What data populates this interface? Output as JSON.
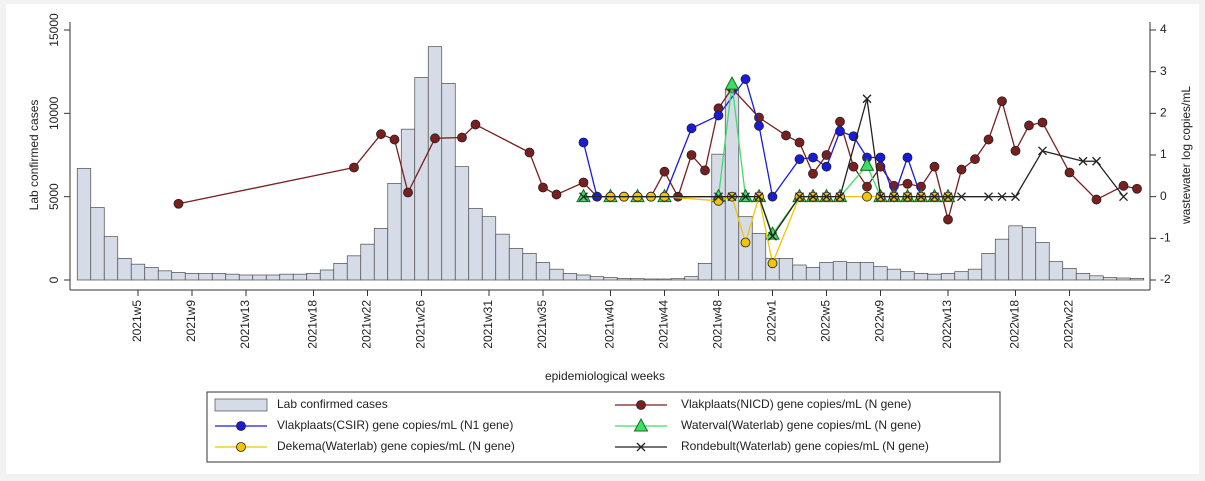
{
  "chart_data": {
    "type": "combo",
    "xlabel": "epidemiological weeks",
    "ylabel": "Lab confirmed cases",
    "y2label": "wastewater log copies/mL",
    "categories": [
      null,
      null,
      null,
      null,
      "2021w5",
      null,
      null,
      null,
      "2021w9",
      null,
      null,
      null,
      "2021w13",
      null,
      null,
      null,
      null,
      "2021w18",
      null,
      null,
      null,
      "2021w22",
      null,
      null,
      null,
      "2021w26",
      null,
      null,
      null,
      null,
      "2021w31",
      null,
      null,
      null,
      "2021w35",
      null,
      null,
      null,
      null,
      "2021w40",
      null,
      null,
      null,
      "2021w44",
      null,
      null,
      null,
      "2021w48",
      null,
      null,
      null,
      "2022w1",
      null,
      null,
      null,
      "2022w5",
      null,
      null,
      null,
      "2022w9",
      null,
      null,
      null,
      null,
      "2022w13",
      null,
      null,
      null,
      null,
      "2022w18",
      null,
      null,
      null,
      "2022w22",
      null,
      null,
      null,
      null,
      null
    ],
    "ylim": [
      0,
      15000
    ],
    "yticks": [
      0,
      5000,
      10000,
      15000
    ],
    "y2lim": [
      -2,
      4
    ],
    "y2ticks": [
      -2,
      -1,
      0,
      1,
      2,
      3,
      4
    ],
    "series": [
      {
        "name": "Lab confirmed cases",
        "type": "bar",
        "color": "#d5dce8",
        "values": [
          6700,
          4350,
          2600,
          1300,
          950,
          750,
          550,
          450,
          400,
          380,
          400,
          350,
          300,
          300,
          300,
          350,
          350,
          400,
          600,
          1000,
          1450,
          2150,
          3100,
          5800,
          9050,
          12150,
          14000,
          11800,
          6800,
          4300,
          3800,
          2750,
          1900,
          1600,
          1050,
          650,
          400,
          300,
          200,
          150,
          100,
          80,
          60,
          60,
          80,
          200,
          1000,
          7550,
          11400,
          3800,
          2800,
          1300,
          1300,
          900,
          750,
          1050,
          1100,
          1050,
          1050,
          800,
          650,
          500,
          400,
          350,
          400,
          500,
          650,
          1600,
          2450,
          3250,
          3150,
          2250,
          1100,
          700,
          400,
          250,
          150,
          120,
          100
        ]
      },
      {
        "name": "Vlakplaats(NICD) gene copies/mL (N gene)",
        "type": "line",
        "axis": "y2",
        "marker": "circle",
        "color": "#7a1f1f",
        "values": [
          null,
          null,
          null,
          null,
          null,
          null,
          null,
          -0.17,
          null,
          null,
          null,
          null,
          null,
          null,
          null,
          null,
          null,
          null,
          null,
          null,
          0.7,
          null,
          1.5,
          1.37,
          0.1,
          null,
          1.4,
          null,
          1.42,
          1.73,
          null,
          null,
          null,
          1.06,
          0.22,
          0.05,
          null,
          0.34,
          0,
          0,
          0,
          0,
          0,
          0.6,
          0,
          1.0,
          0.63,
          2.12,
          2.6,
          null,
          1.9,
          null,
          1.47,
          1.3,
          0.55,
          1.0,
          1.8,
          0.72,
          0.24,
          0.72,
          0.26,
          0.31,
          0.24,
          0.72,
          -0.55,
          0.65,
          0.9,
          1.37,
          2.29,
          1.1,
          1.71,
          1.78,
          null,
          0.58,
          null,
          -0.07,
          null,
          0.26,
          0.19
        ]
      },
      {
        "name": "Vlakplaats(CSIR) gene copies/mL (N1 gene)",
        "type": "line",
        "axis": "y2",
        "marker": "circle",
        "color": "#1a1adb",
        "values": [
          null,
          null,
          null,
          null,
          null,
          null,
          null,
          null,
          null,
          null,
          null,
          null,
          null,
          null,
          null,
          null,
          null,
          null,
          null,
          null,
          null,
          null,
          null,
          null,
          null,
          null,
          null,
          null,
          null,
          null,
          null,
          null,
          null,
          null,
          null,
          null,
          null,
          1.3,
          0,
          0,
          0,
          0,
          0,
          0,
          null,
          1.64,
          null,
          1.95,
          null,
          2.82,
          1.7,
          0,
          null,
          0.9,
          0.94,
          0.72,
          1.57,
          1.45,
          0.94,
          0.94,
          0,
          0.94,
          0,
          0,
          null,
          null,
          null,
          null,
          null,
          null,
          null,
          null,
          null,
          null,
          null,
          null,
          null,
          null,
          null
        ]
      },
      {
        "name": "Waterval(Waterlab) gene copies/mL (N gene)",
        "type": "line",
        "axis": "y2",
        "marker": "triangle",
        "color": "#3fdc6a",
        "values": [
          null,
          null,
          null,
          null,
          null,
          null,
          null,
          null,
          null,
          null,
          null,
          null,
          null,
          null,
          null,
          null,
          null,
          null,
          null,
          null,
          null,
          null,
          null,
          null,
          null,
          null,
          null,
          null,
          null,
          null,
          null,
          null,
          null,
          null,
          null,
          null,
          null,
          0,
          null,
          0,
          null,
          0,
          null,
          0,
          null,
          null,
          null,
          0,
          2.7,
          0,
          0,
          -0.9,
          null,
          0,
          0,
          0,
          0,
          null,
          0.75,
          0,
          0,
          0,
          0,
          0,
          0,
          null,
          null,
          null,
          null,
          null,
          null,
          null,
          null,
          null,
          null,
          null,
          null,
          null,
          null
        ]
      },
      {
        "name": "Dekema(Waterlab) gene copies/mL (N gene)",
        "type": "line",
        "axis": "y2",
        "marker": "circle",
        "color": "#f2c500",
        "values": [
          null,
          null,
          null,
          null,
          null,
          null,
          null,
          null,
          null,
          null,
          null,
          null,
          null,
          null,
          null,
          null,
          null,
          null,
          null,
          null,
          null,
          null,
          null,
          null,
          null,
          null,
          null,
          null,
          null,
          null,
          null,
          null,
          null,
          null,
          null,
          null,
          null,
          null,
          null,
          0,
          0,
          0,
          0,
          0,
          null,
          null,
          null,
          -0.1,
          0,
          -1.1,
          0,
          -1.6,
          null,
          0,
          0,
          0,
          0,
          null,
          0,
          0,
          0,
          0,
          0,
          0,
          0,
          null,
          null,
          null,
          null,
          null,
          null,
          null,
          null,
          null,
          null,
          null,
          null,
          null,
          null
        ]
      },
      {
        "name": "Rondebult(Waterlab) gene copies/mL (N gene)",
        "type": "line",
        "axis": "y2",
        "marker": "x",
        "color": "#222222",
        "values": [
          null,
          null,
          null,
          null,
          null,
          null,
          null,
          null,
          null,
          null,
          null,
          null,
          null,
          null,
          null,
          null,
          null,
          null,
          null,
          null,
          null,
          null,
          null,
          null,
          null,
          null,
          null,
          null,
          null,
          null,
          null,
          null,
          null,
          null,
          null,
          null,
          null,
          0,
          null,
          null,
          null,
          null,
          null,
          null,
          null,
          null,
          null,
          0,
          0,
          0,
          0,
          -0.95,
          null,
          0,
          0,
          0,
          0,
          null,
          2.35,
          0,
          0,
          0,
          0,
          0,
          0,
          0,
          null,
          0,
          0,
          0,
          null,
          1.1,
          null,
          null,
          0.85,
          0.85,
          null,
          0,
          null
        ]
      }
    ]
  }
}
